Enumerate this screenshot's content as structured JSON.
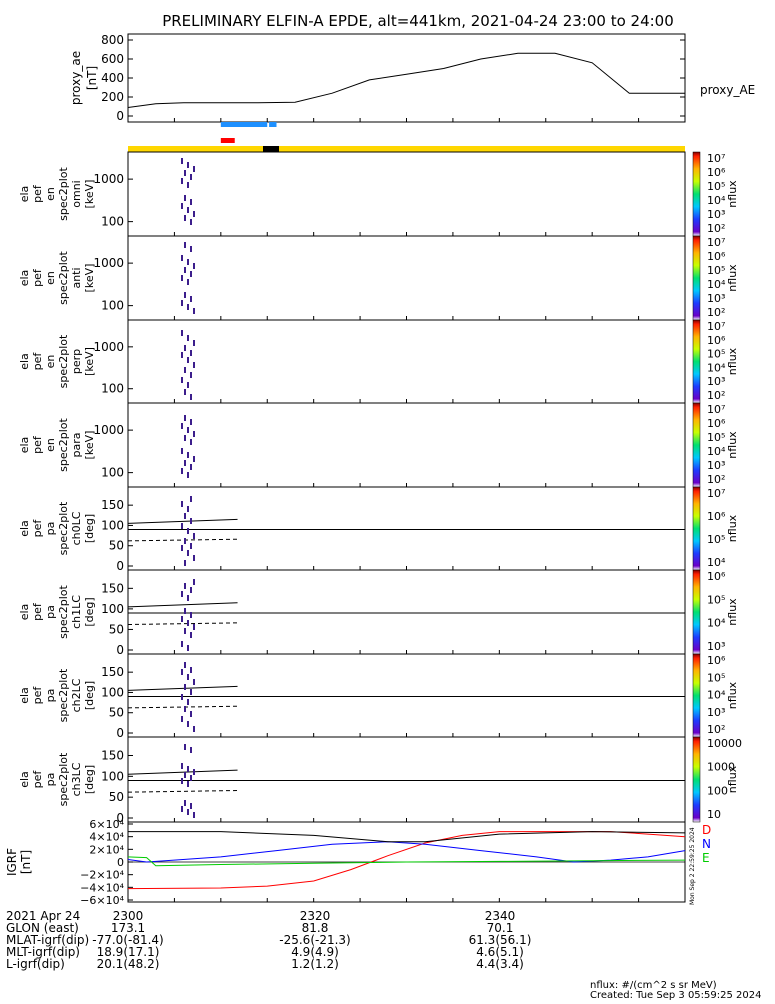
{
  "title": "PRELIMINARY ELFIN-A EPDE, alt=441km, 2021-04-24 23:00 to 24:00",
  "colors": {
    "proxy_line": "#000000",
    "bar_blue": "#1e90ff",
    "bar_red": "#ff0000",
    "status_yellow": "#ffd700",
    "status_black": "#000000",
    "igrf_d": "#ff0000",
    "igrf_n": "#0000ff",
    "igrf_e": "#00cc00",
    "igrf_total": "#000000"
  },
  "chart_data": [
    {
      "type": "line",
      "panel": "proxy_ae",
      "ylabel": "proxy_ae [nT]",
      "ylim": [
        0,
        800
      ],
      "yticks": [
        0,
        200,
        400,
        600,
        800
      ],
      "series": [
        {
          "name": "proxy_AE",
          "x_minutes": [
            0,
            3,
            6,
            10,
            14,
            18,
            22,
            26,
            30,
            34,
            38,
            42,
            46,
            50,
            54,
            58,
            60
          ],
          "values": [
            90,
            130,
            140,
            140,
            140,
            145,
            240,
            380,
            440,
            500,
            600,
            660,
            660,
            560,
            240,
            240,
            240
          ]
        }
      ]
    },
    {
      "type": "bar",
      "panel": "science_zone_bars",
      "series": [
        {
          "name": "blue",
          "x_minutes_start": 10,
          "x_minutes_end": 15
        },
        {
          "name": "blue2",
          "x_minutes_start": 15.2,
          "x_minutes_end": 16
        },
        {
          "name": "red",
          "x_minutes_start": 10,
          "x_minutes_end": 11.5
        }
      ]
    },
    {
      "type": "heatmap",
      "panel": "ela_pef_en_spec2plot_omni",
      "ylabel_lines": [
        "ela",
        "pef",
        "en",
        "spec2plot",
        "omni",
        "[keV]"
      ],
      "yticks": [
        100,
        1000
      ],
      "colorbar_ticks": [
        "10²",
        "10³",
        "10⁴",
        "10⁵",
        "10⁶",
        "10⁷"
      ],
      "colorbar_label": "nflux"
    },
    {
      "type": "heatmap",
      "panel": "ela_pef_en_spec2plot_anti",
      "ylabel_lines": [
        "ela",
        "pef",
        "en",
        "spec2plot",
        "anti",
        "[keV]"
      ],
      "yticks": [
        100,
        1000
      ],
      "colorbar_ticks": [
        "10²",
        "10³",
        "10⁴",
        "10⁵",
        "10⁶",
        "10⁷"
      ],
      "colorbar_label": "nflux"
    },
    {
      "type": "heatmap",
      "panel": "ela_pef_en_spec2plot_perp",
      "ylabel_lines": [
        "ela",
        "pef",
        "en",
        "spec2plot",
        "perp",
        "[keV]"
      ],
      "yticks": [
        100,
        1000
      ],
      "colorbar_ticks": [
        "10²",
        "10³",
        "10⁴",
        "10⁵",
        "10⁶",
        "10⁷"
      ],
      "colorbar_label": "nflux"
    },
    {
      "type": "heatmap",
      "panel": "ela_pef_en_spec2plot_para",
      "ylabel_lines": [
        "ela",
        "pef",
        "en",
        "spec2plot",
        "para",
        "[keV]"
      ],
      "yticks": [
        100,
        1000
      ],
      "colorbar_ticks": [
        "10²",
        "10³",
        "10⁴",
        "10⁵",
        "10⁶",
        "10⁷"
      ],
      "colorbar_label": "nflux"
    },
    {
      "type": "heatmap",
      "panel": "ela_pef_pa_spec2plot_ch0LC",
      "ylabel_lines": [
        "ela",
        "pef",
        "pa",
        "spec2plot",
        "ch0LC",
        "[deg]"
      ],
      "ylim": [
        0,
        180
      ],
      "yticks": [
        0,
        50,
        100,
        150
      ],
      "colorbar_ticks": [
        "10⁴",
        "10⁵",
        "10⁶",
        "10⁷"
      ],
      "colorbar_label": "nflux"
    },
    {
      "type": "heatmap",
      "panel": "ela_pef_pa_spec2plot_ch1LC",
      "ylabel_lines": [
        "ela",
        "pef",
        "pa",
        "spec2plot",
        "ch1LC",
        "[deg]"
      ],
      "ylim": [
        0,
        180
      ],
      "yticks": [
        0,
        50,
        100,
        150
      ],
      "colorbar_ticks": [
        "10³",
        "10⁴",
        "10⁵",
        "10⁶"
      ],
      "colorbar_label": "nflux"
    },
    {
      "type": "heatmap",
      "panel": "ela_pef_pa_spec2plot_ch2LC",
      "ylabel_lines": [
        "ela",
        "pef",
        "pa",
        "spec2plot",
        "ch2LC",
        "[deg]"
      ],
      "ylim": [
        0,
        180
      ],
      "yticks": [
        0,
        50,
        100,
        150
      ],
      "colorbar_ticks": [
        "10²",
        "10³",
        "10⁴",
        "10⁵",
        "10⁶"
      ],
      "colorbar_label": "nflux"
    },
    {
      "type": "heatmap",
      "panel": "ela_pef_pa_spec2plot_ch3LC",
      "ylabel_lines": [
        "ela",
        "pef",
        "pa",
        "spec2plot",
        "ch3LC",
        "[deg]"
      ],
      "ylim": [
        0,
        180
      ],
      "yticks": [
        0,
        50,
        100,
        150
      ],
      "colorbar_ticks": [
        "10",
        "100",
        "1000",
        "10000"
      ],
      "colorbar_label": "nflux"
    },
    {
      "type": "line",
      "panel": "IGRF",
      "ylabel": "IGRF [nT]",
      "ylim": [
        -60000,
        60000
      ],
      "yticks": [
        "−6×10⁴",
        "−4×10⁴",
        "−2×10⁴",
        "0",
        "2×10⁴",
        "4×10⁴",
        "6×10⁴"
      ],
      "legend": [
        "D",
        "N",
        "E"
      ],
      "side_note": "Mon Sep  2 22:59:25 2024",
      "series": [
        {
          "name": "D",
          "x_minutes": [
            0,
            10,
            15,
            20,
            24,
            28,
            32,
            36,
            40,
            44,
            48,
            52,
            56,
            60
          ],
          "values": [
            -42000,
            -41000,
            -38000,
            -30000,
            -12000,
            10000,
            30000,
            42000,
            48000,
            48000,
            48000,
            48000,
            44000,
            40000
          ]
        },
        {
          "name": "N",
          "x_minutes": [
            0,
            2,
            4,
            10,
            16,
            22,
            28,
            32,
            38,
            44,
            48,
            52,
            56,
            60
          ],
          "values": [
            4000,
            0,
            2000,
            8000,
            18000,
            28000,
            32000,
            28000,
            18000,
            8000,
            0,
            3000,
            8000,
            18000
          ]
        },
        {
          "name": "E",
          "x_minutes": [
            0,
            2,
            3,
            10,
            20,
            30,
            40,
            50,
            60
          ],
          "values": [
            8000,
            7000,
            -6000,
            -4000,
            -2000,
            0,
            1000,
            2000,
            3000
          ]
        },
        {
          "name": "total",
          "x_minutes": [
            0,
            10,
            20,
            28,
            32,
            40,
            50,
            60
          ],
          "values": [
            48000,
            48000,
            42000,
            32000,
            32000,
            44000,
            48000,
            46000
          ]
        }
      ]
    }
  ],
  "x_axis_table": {
    "rows": [
      {
        "label": "2021 Apr 24",
        "values": [
          "2300",
          "2320",
          "2340"
        ]
      },
      {
        "label": "GLON (east)",
        "values": [
          "173.1",
          "81.8",
          "70.1"
        ]
      },
      {
        "label": "MLAT-igrf(dip)",
        "values": [
          "-77.0(-81.4)",
          "-25.6(-21.3)",
          "61.3(56.1)"
        ]
      },
      {
        "label": "MLT-igrf(dip)",
        "values": [
          "18.9(17.1)",
          "4.9(4.9)",
          "4.6(5.1)"
        ]
      },
      {
        "label": "L-igrf(dip)",
        "values": [
          "20.1(48.2)",
          "1.2(1.2)",
          "4.4(3.4)"
        ]
      }
    ]
  },
  "footer": {
    "units": "nflux: #/(cm^2 s sr MeV)",
    "created": "Created: Tue Sep  3 05:59:25 2024"
  }
}
